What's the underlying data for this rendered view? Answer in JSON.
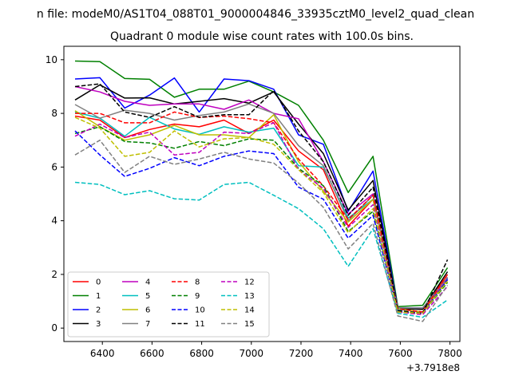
{
  "chart_data": {
    "type": "line",
    "suptitle": "n file: modeM0/AS1T04_088T01_9000004846_33935cztM0_level2_quad_clean",
    "title": "Quadrant 0 module wise count rates with 100.0s bins.",
    "xlabel": "",
    "ylabel": "",
    "x_offset_label": "+3.7918e8",
    "xlim": [
      6245,
      7840
    ],
    "ylim": [
      -0.5,
      10.5
    ],
    "x_ticks": [
      6400,
      6600,
      6800,
      7000,
      7200,
      7400,
      7600,
      7800
    ],
    "y_ticks": [
      0,
      2,
      4,
      6,
      8,
      10
    ],
    "grid": false,
    "legend_position": "lower-left",
    "legend_columns": 4,
    "x": [
      6290,
      6390,
      6490,
      6590,
      6690,
      6790,
      6890,
      6990,
      7090,
      7190,
      7290,
      7390,
      7490,
      7590,
      7690,
      7790
    ],
    "series": [
      {
        "name": "0",
        "color": "#ff0000",
        "dash": "solid",
        "values": [
          7.9,
          7.75,
          7.1,
          7.4,
          7.6,
          7.5,
          7.75,
          7.25,
          7.75,
          6.6,
          5.9,
          3.8,
          4.8,
          0.75,
          0.7,
          2.0
        ]
      },
      {
        "name": "1",
        "color": "#008000",
        "dash": "solid",
        "values": [
          9.95,
          9.93,
          9.3,
          9.27,
          8.6,
          8.9,
          8.9,
          9.2,
          8.8,
          8.3,
          7.0,
          5.05,
          6.4,
          0.8,
          0.85,
          2.25
        ]
      },
      {
        "name": "2",
        "color": "#0000ff",
        "dash": "solid",
        "values": [
          9.28,
          9.33,
          8.2,
          8.68,
          9.32,
          8.05,
          9.28,
          9.22,
          8.9,
          7.2,
          6.85,
          4.35,
          5.85,
          0.75,
          0.75,
          1.85
        ]
      },
      {
        "name": "3",
        "color": "#000000",
        "dash": "solid",
        "values": [
          8.5,
          9.06,
          8.57,
          8.58,
          8.35,
          8.45,
          8.55,
          8.38,
          8.8,
          7.6,
          6.5,
          4.4,
          5.5,
          0.72,
          0.7,
          2.1
        ]
      },
      {
        "name": "4",
        "color": "#bf00bf",
        "dash": "solid",
        "values": [
          9.0,
          8.8,
          8.45,
          8.3,
          8.35,
          8.35,
          8.15,
          8.5,
          8.0,
          7.8,
          6.2,
          4.25,
          5.0,
          0.7,
          0.6,
          1.9
        ]
      },
      {
        "name": "5",
        "color": "#00bfbf",
        "dash": "solid",
        "values": [
          8.05,
          7.82,
          7.15,
          7.85,
          7.42,
          7.22,
          7.5,
          7.3,
          7.45,
          6.05,
          6.0,
          4.1,
          4.8,
          0.7,
          0.6,
          1.8
        ]
      },
      {
        "name": "6",
        "color": "#bfbf00",
        "dash": "solid",
        "values": [
          8.1,
          7.5,
          7.0,
          7.2,
          7.55,
          7.2,
          7.2,
          7.1,
          7.95,
          6.2,
          5.1,
          3.95,
          4.8,
          0.72,
          0.6,
          1.8
        ]
      },
      {
        "name": "7",
        "color": "#808080",
        "dash": "solid",
        "values": [
          8.33,
          7.82,
          8.12,
          8.0,
          7.75,
          7.92,
          8.05,
          8.35,
          8.0,
          6.8,
          6.05,
          4.0,
          4.95,
          0.75,
          0.75,
          1.9
        ]
      },
      {
        "name": "8",
        "color": "#ff0000",
        "dash": "dashed",
        "values": [
          8.0,
          8.0,
          7.65,
          7.65,
          8.05,
          7.85,
          7.9,
          7.8,
          7.65,
          6.3,
          5.3,
          4.05,
          4.95,
          0.72,
          0.6,
          2.0
        ]
      },
      {
        "name": "9",
        "color": "#008000",
        "dash": "dashed",
        "values": [
          7.25,
          7.5,
          6.95,
          6.9,
          6.7,
          6.95,
          6.8,
          7.05,
          7.0,
          5.95,
          5.3,
          3.6,
          4.35,
          0.65,
          0.55,
          1.7
        ]
      },
      {
        "name": "10",
        "color": "#0000ff",
        "dash": "dashed",
        "values": [
          7.35,
          6.45,
          5.65,
          5.95,
          6.35,
          6.05,
          6.4,
          6.6,
          6.5,
          5.25,
          4.8,
          3.35,
          4.2,
          0.6,
          0.55,
          1.8
        ]
      },
      {
        "name": "11",
        "color": "#000000",
        "dash": "dashed",
        "values": [
          9.0,
          9.1,
          8.05,
          7.85,
          8.25,
          7.85,
          7.95,
          7.95,
          8.85,
          7.35,
          6.2,
          4.2,
          5.25,
          0.65,
          0.55,
          2.55
        ]
      },
      {
        "name": "12",
        "color": "#bf00bf",
        "dash": "dashed",
        "values": [
          7.15,
          7.6,
          7.1,
          7.3,
          6.45,
          6.55,
          7.3,
          7.25,
          7.65,
          5.9,
          5.2,
          3.75,
          4.6,
          0.6,
          0.5,
          1.55
        ]
      },
      {
        "name": "13",
        "color": "#00bfbf",
        "dash": "dashed",
        "values": [
          5.43,
          5.35,
          4.97,
          5.12,
          4.82,
          4.77,
          5.35,
          5.43,
          4.95,
          4.45,
          3.7,
          2.3,
          3.7,
          0.55,
          0.4,
          1.05
        ]
      },
      {
        "name": "14",
        "color": "#bfbf00",
        "dash": "dashed",
        "values": [
          7.85,
          7.45,
          6.4,
          6.55,
          7.35,
          6.75,
          7.05,
          7.1,
          6.85,
          5.9,
          5.05,
          3.55,
          4.45,
          0.6,
          0.55,
          1.75
        ]
      },
      {
        "name": "15",
        "color": "#808080",
        "dash": "dashed",
        "values": [
          6.45,
          7.0,
          5.8,
          6.4,
          6.1,
          6.3,
          6.55,
          6.3,
          6.15,
          5.4,
          4.5,
          2.95,
          3.9,
          0.45,
          0.25,
          1.6
        ]
      }
    ]
  }
}
